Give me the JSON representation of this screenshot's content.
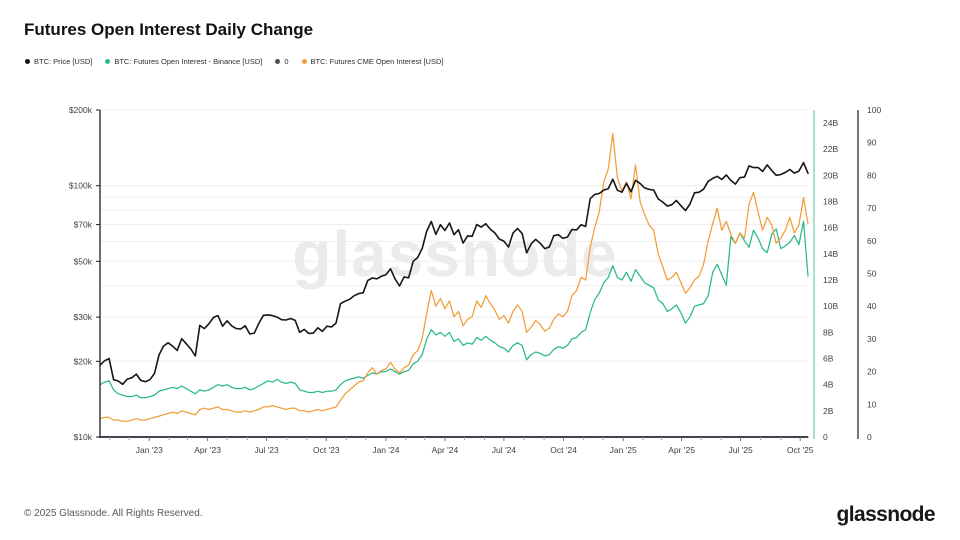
{
  "page": {
    "title": "Futures Open Interest Daily Change"
  },
  "legend": {
    "items": [
      {
        "label": "BTC: Price [USD]",
        "color": "#161616"
      },
      {
        "label": "BTC: Futures Open Interest - Binance [USD]",
        "color": "#2ab98a"
      },
      {
        "label": "0",
        "color": "#4d4d4d"
      },
      {
        "label": "BTC: Futures CME Open Interest [USD]",
        "color": "#f29d38"
      }
    ]
  },
  "watermark": "glassnode",
  "footer": {
    "copyright": "© 2025 Glassnode. All Rights Reserved.",
    "logo_text": "glassnode"
  },
  "chart_data": {
    "type": "line",
    "title": "Futures Open Interest Daily Change",
    "x_start_date": "2022-10-17",
    "x_step_days": 7,
    "x_ticks": [
      {
        "date": "2023-01-01",
        "label": "Jan '23"
      },
      {
        "date": "2023-04-01",
        "label": "Apr '23"
      },
      {
        "date": "2023-07-01",
        "label": "Jul '23"
      },
      {
        "date": "2023-10-01",
        "label": "Oct '23"
      },
      {
        "date": "2024-01-01",
        "label": "Jan '24"
      },
      {
        "date": "2024-04-01",
        "label": "Apr '24"
      },
      {
        "date": "2024-07-01",
        "label": "Jul '24"
      },
      {
        "date": "2024-10-01",
        "label": "Oct '24"
      },
      {
        "date": "2025-01-01",
        "label": "Jan '25"
      },
      {
        "date": "2025-04-01",
        "label": "Apr '25"
      },
      {
        "date": "2025-07-01",
        "label": "Jul '25"
      },
      {
        "date": "2025-10-01",
        "label": "Oct '25"
      }
    ],
    "axes": {
      "price_left": {
        "scale": "log",
        "min": 10000,
        "max": 200000,
        "unit": "USD",
        "ticks": [
          {
            "value": 200000,
            "label": "$200k"
          },
          {
            "value": 100000,
            "label": "$100k"
          },
          {
            "value": 70000,
            "label": "$70k"
          },
          {
            "value": 50000,
            "label": "$50k"
          },
          {
            "value": 30000,
            "label": "$30k"
          },
          {
            "value": 20000,
            "label": "$20k"
          },
          {
            "value": 10000,
            "label": "$10k"
          }
        ],
        "gridline_values": [
          20000,
          30000,
          40000,
          50000,
          60000,
          70000,
          80000,
          90000,
          100000,
          200000
        ]
      },
      "oi_right": {
        "scale": "linear",
        "min": 0,
        "max": 25,
        "unit": "USD billions",
        "axis_color": "#8ad6bb",
        "ticks": [
          {
            "value": 0,
            "label": "0"
          },
          {
            "value": 2,
            "label": "2B"
          },
          {
            "value": 4,
            "label": "4B"
          },
          {
            "value": 6,
            "label": "6B"
          },
          {
            "value": 8,
            "label": "8B"
          },
          {
            "value": 10,
            "label": "10B"
          },
          {
            "value": 12,
            "label": "12B"
          },
          {
            "value": 14,
            "label": "14B"
          },
          {
            "value": 16,
            "label": "16B"
          },
          {
            "value": 18,
            "label": "18B"
          },
          {
            "value": 20,
            "label": "20B"
          },
          {
            "value": 22,
            "label": "22B"
          },
          {
            "value": 24,
            "label": "24B"
          }
        ]
      },
      "pct_right": {
        "scale": "linear",
        "min": 0,
        "max": 100,
        "unit": "",
        "axis_color": "#4a4a4a",
        "ticks": [
          {
            "value": 0,
            "label": "0"
          },
          {
            "value": 10,
            "label": "10"
          },
          {
            "value": 20,
            "label": "20"
          },
          {
            "value": 30,
            "label": "30"
          },
          {
            "value": 40,
            "label": "40"
          },
          {
            "value": 50,
            "label": "50"
          },
          {
            "value": 60,
            "label": "60"
          },
          {
            "value": 70,
            "label": "70"
          },
          {
            "value": 80,
            "label": "80"
          },
          {
            "value": 90,
            "label": "90"
          },
          {
            "value": 100,
            "label": "100"
          }
        ]
      }
    },
    "draw_order": [
      2,
      1,
      3,
      0
    ],
    "series": [
      {
        "name": "BTC: Price [USD]",
        "color": "#161616",
        "axis": "price_left",
        "unit": "USD",
        "values": [
          19300,
          20100,
          20500,
          16900,
          16700,
          16200,
          17000,
          17200,
          17800,
          16800,
          16600,
          16900,
          17900,
          21200,
          23000,
          23700,
          23000,
          22100,
          24600,
          23500,
          22400,
          21000,
          27800,
          27000,
          28200,
          29900,
          30400,
          27600,
          29000,
          27700,
          27000,
          26900,
          27700,
          25700,
          25900,
          28300,
          30500,
          30600,
          30400,
          30000,
          29300,
          29200,
          29600,
          29100,
          26100,
          26800,
          25800,
          25900,
          27200,
          26300,
          27600,
          27400,
          28400,
          33900,
          34700,
          35300,
          36500,
          37200,
          37500,
          42000,
          42900,
          42600,
          43600,
          44200,
          46700,
          42600,
          39900,
          43300,
          43000,
          50000,
          51800,
          56300,
          66100,
          72000,
          64000,
          69900,
          66300,
          71000,
          63800,
          66800,
          59100,
          63100,
          62900,
          70000,
          68400,
          70600,
          67100,
          64900,
          61300,
          60200,
          57000,
          64800,
          67600,
          64600,
          54000,
          58700,
          61200,
          59000,
          56200,
          57000,
          63200,
          63800,
          61700,
          62500,
          67000,
          66600,
          69900,
          68800,
          88700,
          92300,
          93100,
          96000,
          97300,
          106100,
          95800,
          94200,
          102100,
          94500,
          105000,
          102100,
          98000,
          96600,
          96100,
          88600,
          86000,
          82900,
          84000,
          87300,
          83200,
          79600,
          84500,
          93700,
          94200,
          96800,
          104100,
          106900,
          109000,
          105900,
          110300,
          104900,
          101400,
          107600,
          108200,
          119900,
          118000,
          118100,
          114000,
          121000,
          115000,
          110000,
          110800,
          112900,
          116000,
          112200,
          114300,
          123500,
          112000
        ]
      },
      {
        "name": "BTC: Futures Open Interest - Binance [USD]",
        "color": "#2ab98a",
        "axis": "oi_right",
        "unit": "USD billions",
        "values": [
          4.0,
          4.2,
          4.3,
          3.6,
          3.3,
          3.2,
          3.1,
          3.1,
          3.2,
          3.0,
          3.0,
          3.1,
          3.2,
          3.5,
          3.6,
          3.7,
          3.8,
          3.7,
          3.9,
          3.7,
          3.5,
          3.3,
          3.6,
          3.5,
          3.6,
          3.8,
          4.0,
          3.9,
          4.0,
          3.8,
          3.7,
          3.7,
          3.8,
          3.6,
          3.7,
          3.9,
          4.1,
          4.3,
          4.2,
          4.4,
          4.2,
          4.1,
          4.2,
          4.1,
          3.6,
          3.5,
          3.4,
          3.4,
          3.5,
          3.4,
          3.5,
          3.5,
          3.6,
          4.0,
          4.3,
          4.4,
          4.5,
          4.6,
          4.5,
          4.7,
          4.9,
          4.8,
          5.0,
          5.0,
          5.2,
          5.0,
          4.8,
          5.0,
          5.1,
          5.6,
          5.8,
          6.3,
          7.5,
          8.2,
          7.8,
          8.0,
          7.7,
          8.0,
          7.3,
          7.5,
          7.0,
          7.2,
          7.1,
          7.6,
          7.4,
          7.7,
          7.4,
          7.2,
          6.9,
          6.8,
          6.5,
          7.0,
          7.2,
          7.0,
          5.9,
          6.3,
          6.5,
          6.4,
          6.2,
          6.3,
          6.7,
          6.9,
          6.8,
          7.0,
          7.5,
          7.6,
          8.0,
          8.2,
          9.5,
          10.5,
          11.0,
          11.8,
          12.2,
          13.1,
          12.2,
          12.0,
          12.6,
          11.9,
          12.8,
          12.3,
          11.8,
          11.6,
          11.4,
          10.5,
          10.2,
          9.6,
          9.8,
          10.1,
          9.5,
          8.7,
          9.2,
          10.0,
          10.1,
          10.2,
          10.8,
          12.6,
          13.2,
          12.4,
          11.6,
          15.3,
          14.8,
          15.6,
          15.0,
          14.5,
          15.8,
          15.2,
          14.4,
          14.1,
          15.5,
          15.9,
          14.4,
          14.6,
          14.9,
          15.4,
          14.7,
          16.5,
          12.3
        ]
      },
      {
        "name": "0",
        "color": "#4d4d4d",
        "axis": "pct_right",
        "unit": "",
        "constant_value": 0
      },
      {
        "name": "BTC: Futures CME Open Interest [USD]",
        "color": "#f29d38",
        "axis": "oi_right",
        "unit": "USD billions",
        "values": [
          1.4,
          1.5,
          1.5,
          1.3,
          1.3,
          1.2,
          1.2,
          1.3,
          1.4,
          1.3,
          1.3,
          1.4,
          1.5,
          1.6,
          1.7,
          1.8,
          1.9,
          1.8,
          2.0,
          1.9,
          1.8,
          1.7,
          2.1,
          2.2,
          2.1,
          2.2,
          2.3,
          2.1,
          2.1,
          2.0,
          1.9,
          1.9,
          2.0,
          1.9,
          2.0,
          2.1,
          2.3,
          2.3,
          2.4,
          2.3,
          2.2,
          2.1,
          2.2,
          2.2,
          2.0,
          2.0,
          1.9,
          2.0,
          2.1,
          2.0,
          2.1,
          2.2,
          2.3,
          2.8,
          3.3,
          3.6,
          3.9,
          4.2,
          4.3,
          4.9,
          5.3,
          4.8,
          5.1,
          5.2,
          5.7,
          5.2,
          4.9,
          5.3,
          5.5,
          6.3,
          6.6,
          7.5,
          9.5,
          11.2,
          10.0,
          10.6,
          9.8,
          10.4,
          9.2,
          9.6,
          8.5,
          9.0,
          9.2,
          10.4,
          9.9,
          10.8,
          10.2,
          9.7,
          9.0,
          9.3,
          8.7,
          9.6,
          10.1,
          9.6,
          8.0,
          8.4,
          8.9,
          8.6,
          8.1,
          8.3,
          9.0,
          9.4,
          9.2,
          9.6,
          10.8,
          11.2,
          12.2,
          12.0,
          14.5,
          16.0,
          17.2,
          19.5,
          20.5,
          23.2,
          19.8,
          18.8,
          19.5,
          18.2,
          20.8,
          18.0,
          17.0,
          16.2,
          15.8,
          14.0,
          13.0,
          12.0,
          12.2,
          12.6,
          11.8,
          11.0,
          11.4,
          12.0,
          12.3,
          13.2,
          15.0,
          16.3,
          17.5,
          15.8,
          16.5,
          15.5,
          14.8,
          15.6,
          15.2,
          17.8,
          18.7,
          17.2,
          15.8,
          16.8,
          16.2,
          14.8,
          15.2,
          15.8,
          16.8,
          15.6,
          16.2,
          18.3,
          16.3
        ]
      }
    ]
  }
}
